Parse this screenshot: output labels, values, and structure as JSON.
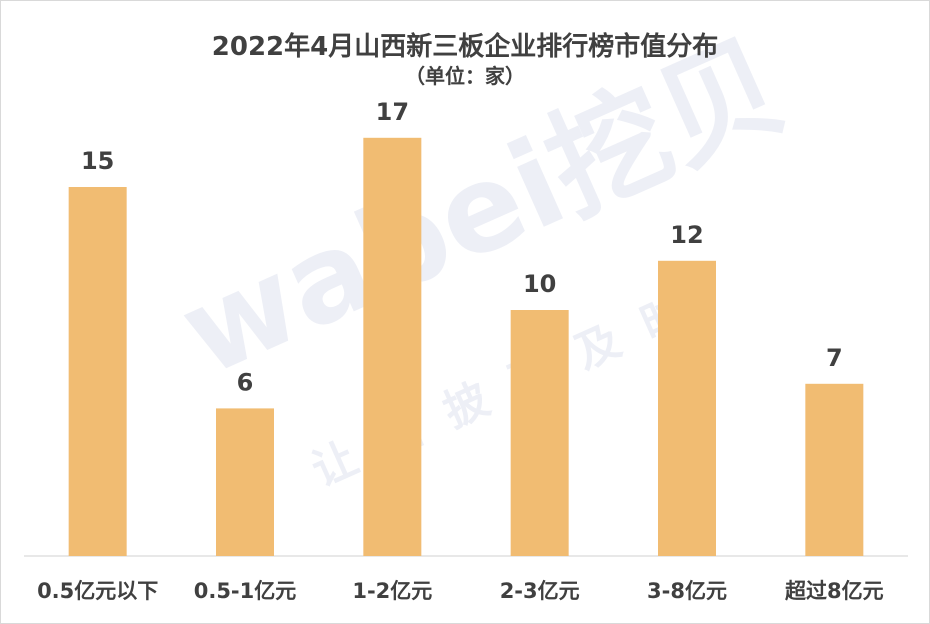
{
  "chart_data": {
    "type": "bar",
    "title": "2022年4月山西新三板企业排行榜市值分布",
    "subtitle": "（单位：家）",
    "categories": [
      "0.5亿元以下",
      "0.5-1亿元",
      "1-2亿元",
      "2-3亿元",
      "3-8亿元",
      "超过8亿元"
    ],
    "values": [
      15,
      6,
      17,
      10,
      12,
      7
    ],
    "ylim": [
      0,
      18
    ],
    "grid": false,
    "legend": "none",
    "bar_color": "#F1BC72",
    "label_color": "#404040"
  },
  "watermark": {
    "brand": "wabei挖贝",
    "slogan": "让信披更及时"
  }
}
